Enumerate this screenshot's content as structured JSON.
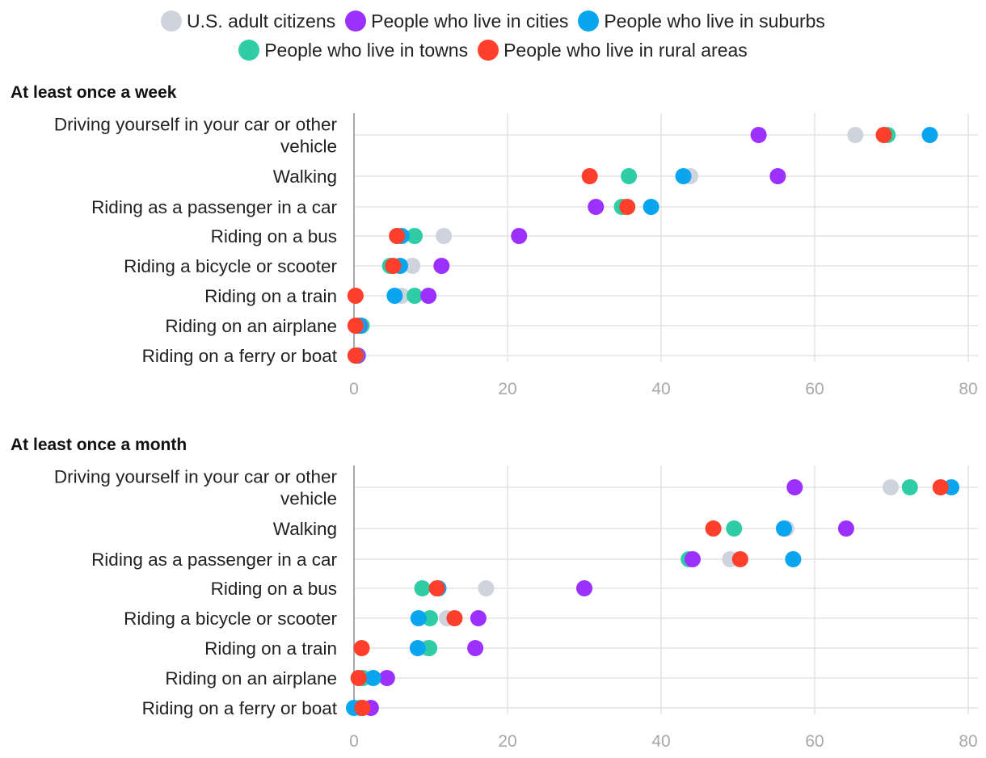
{
  "chart_data": [
    {
      "type": "dot",
      "title": "At least once a week",
      "categories": [
        [
          "Driving yourself in your car or other",
          "vehicle"
        ],
        [
          "Walking"
        ],
        [
          "Riding as a passenger in a car"
        ],
        [
          "Riding on a bus"
        ],
        [
          "Riding a bicycle or scooter"
        ],
        [
          "Riding on a train"
        ],
        [
          "Riding on an airplane"
        ],
        [
          "Riding on a ferry or boat"
        ]
      ],
      "xlim": [
        0,
        80
      ],
      "xticks": [
        "0",
        "20",
        "40",
        "60",
        "80"
      ],
      "grid": true,
      "series": [
        {
          "key": "us",
          "values": [
            65.3,
            43.8,
            35.1,
            11.7,
            7.6,
            6.2,
            0.8,
            0.4
          ]
        },
        {
          "key": "towns",
          "values": [
            69.5,
            35.8,
            34.9,
            7.9,
            4.7,
            7.9,
            1.0,
            0.3
          ]
        },
        {
          "key": "cities",
          "values": [
            52.7,
            55.2,
            31.5,
            21.5,
            11.4,
            9.7,
            0.7,
            0.5
          ]
        },
        {
          "key": "suburbs",
          "values": [
            75.0,
            42.9,
            38.7,
            6.2,
            6.0,
            5.3,
            0.6,
            0.3
          ]
        },
        {
          "key": "rural",
          "values": [
            69.0,
            30.7,
            35.6,
            5.6,
            5.1,
            0.2,
            0.2,
            0.2
          ]
        }
      ]
    },
    {
      "type": "dot",
      "title": "At least once a month",
      "categories": [
        [
          "Driving yourself in your car or other",
          "vehicle"
        ],
        [
          "Walking"
        ],
        [
          "Riding as a passenger in a car"
        ],
        [
          "Riding on a bus"
        ],
        [
          "Riding a bicycle or scooter"
        ],
        [
          "Riding on a train"
        ],
        [
          "Riding on an airplane"
        ],
        [
          "Riding on a ferry or boat"
        ]
      ],
      "xlim": [
        0,
        80
      ],
      "xticks": [
        "0",
        "20",
        "40",
        "60",
        "80"
      ],
      "grid": true,
      "series": [
        {
          "key": "us",
          "values": [
            69.9,
            56.3,
            49.0,
            17.2,
            12.1,
            9.4,
            1.3,
            1.0
          ]
        },
        {
          "key": "towns",
          "values": [
            72.4,
            49.5,
            43.6,
            8.9,
            9.9,
            9.8,
            1.1,
            0.8
          ]
        },
        {
          "key": "cities",
          "values": [
            57.4,
            64.1,
            44.1,
            30.0,
            16.2,
            15.8,
            4.3,
            2.2
          ]
        },
        {
          "key": "suburbs",
          "values": [
            77.8,
            56.0,
            57.2,
            11.0,
            8.4,
            8.3,
            2.5,
            0.0
          ]
        },
        {
          "key": "rural",
          "values": [
            76.4,
            46.8,
            50.3,
            10.8,
            13.1,
            1.0,
            0.6,
            1.1
          ]
        }
      ]
    }
  ],
  "legend": [
    {
      "key": "us",
      "label": "U.S. adult citizens",
      "color": "#cfd3dd"
    },
    {
      "key": "cities",
      "label": "People who live in cities",
      "color": "#9b30ff"
    },
    {
      "key": "suburbs",
      "label": "People who live in suburbs",
      "color": "#0aa5ef"
    },
    {
      "key": "towns",
      "label": "People who live in towns",
      "color": "#2fcda6"
    },
    {
      "key": "rural",
      "label": "People who live in rural areas",
      "color": "#ff3f2b"
    }
  ]
}
